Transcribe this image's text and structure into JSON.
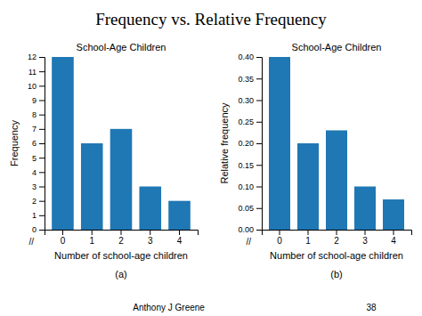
{
  "title": "Frequency vs. Relative Frequency",
  "annotations": [
    "Anthony J Greene",
    "38"
  ],
  "chart_data": [
    {
      "type": "bar",
      "title": "School-Age Children",
      "xlabel": "Number of school-age children",
      "ylabel": "Frequency",
      "categories": [
        0,
        1,
        2,
        3,
        4
      ],
      "values": [
        12,
        6,
        7,
        3,
        2
      ],
      "ylim": [
        0,
        12
      ],
      "yticks": [
        0,
        1,
        2,
        3,
        4,
        5,
        6,
        7,
        8,
        9,
        10,
        11,
        12
      ],
      "annotations": [
        "//",
        "(a)"
      ]
    },
    {
      "type": "bar",
      "title": "School-Age Children",
      "xlabel": "Number of school-age children",
      "ylabel": "Relative frequency",
      "categories": [
        0,
        1,
        2,
        3,
        4
      ],
      "values": [
        0.4,
        0.2,
        0.23,
        0.1,
        0.07
      ],
      "ylim": [
        0,
        0.4
      ],
      "yticks": [
        {
          "value": 0,
          "label": "0.00"
        },
        0.05,
        {
          "value": 0.1,
          "label": "0.10"
        },
        0.15,
        {
          "value": 0.2,
          "label": "0.20"
        },
        0.25,
        {
          "value": 0.3,
          "label": "0.30"
        },
        0.35,
        {
          "value": 0.4,
          "label": "0.40"
        }
      ],
      "annotations": [
        "//",
        "(b)"
      ]
    }
  ]
}
